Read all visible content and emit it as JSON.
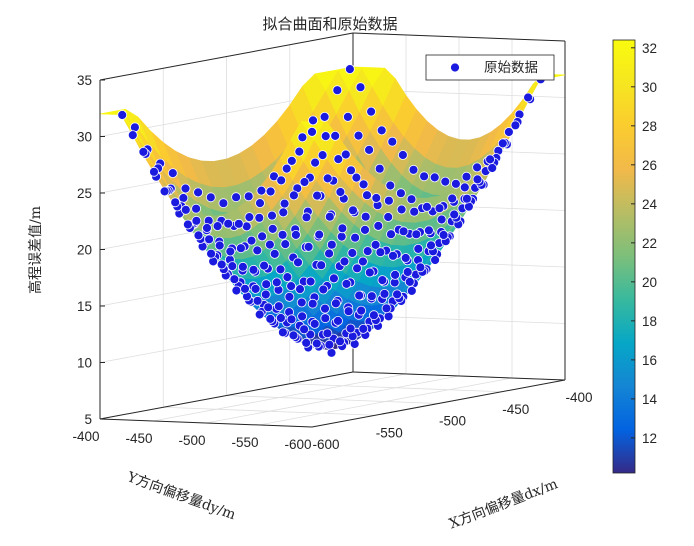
{
  "chart_data": {
    "type": "surface3d",
    "title": "拟合曲面和原始数据",
    "xlabel": "X方向偏移量dx/m",
    "ylabel": "Y方向偏移量dy/m",
    "zlabel": "高程误差值/m",
    "xlim": [
      -600,
      -400
    ],
    "ylim": [
      -600,
      -400
    ],
    "zlim": [
      5,
      35
    ],
    "x_ticks": [
      "-600",
      "-550",
      "-500",
      "-450",
      "-400"
    ],
    "y_ticks": [
      "-600",
      "-550",
      "-500",
      "-450",
      "-400"
    ],
    "z_ticks": [
      "5",
      "10",
      "15",
      "20",
      "25",
      "30",
      "35"
    ],
    "colorbar": {
      "colormap": "parula",
      "range": [
        10.2,
        32.4
      ],
      "ticks": [
        "12",
        "14",
        "16",
        "18",
        "20",
        "22",
        "24",
        "26",
        "28",
        "30",
        "32"
      ]
    },
    "legend": {
      "entries": [
        "原始数据"
      ],
      "placement": "top-right"
    },
    "surface_model": {
      "description": "Bowl-shaped fitted surface, min ~9.5 near center, ~32 at corners",
      "center": [
        -505,
        -505
      ],
      "min_z": 9.5,
      "corner_z": 32,
      "grid_step": 10
    },
    "scatter": {
      "name": "原始数据",
      "grid_x": [
        -595,
        -585,
        -575,
        -565,
        -555,
        -545,
        -535,
        -525,
        -515,
        -505,
        -495,
        -485,
        -475,
        -465,
        -455,
        -445,
        -435,
        -425,
        -415
      ],
      "grid_y": [
        -595,
        -585,
        -575,
        -565,
        -555,
        -545,
        -535,
        -525,
        -515,
        -505,
        -495,
        -485,
        -475,
        -465,
        -455,
        -445,
        -435,
        -425,
        -415
      ],
      "noise": 0.25
    }
  }
}
